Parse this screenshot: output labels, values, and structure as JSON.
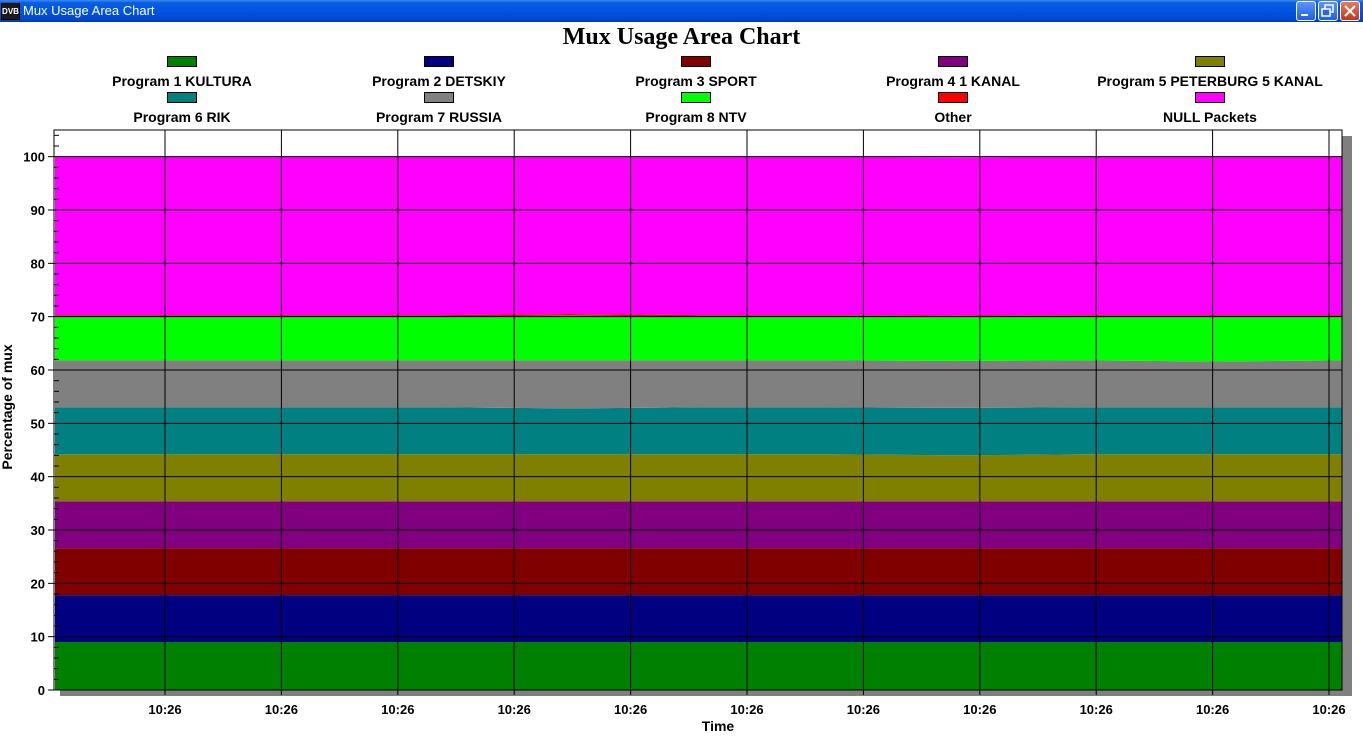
{
  "window": {
    "title": "Mux Usage Area Chart",
    "icon_text": "DVB"
  },
  "chart_data": {
    "type": "area",
    "stacked": true,
    "title": "Mux Usage Area Chart",
    "xlabel": "Time",
    "ylabel": "Percentage of mux",
    "ylim": [
      0,
      105
    ],
    "yticks": [
      0,
      10,
      20,
      30,
      40,
      50,
      60,
      70,
      80,
      90,
      100
    ],
    "x_tick_labels": [
      "10:26",
      "10:26",
      "10:26",
      "10:26",
      "10:26",
      "10:26",
      "10:26",
      "10:26",
      "10:26",
      "10:26",
      "10:26"
    ],
    "grid": true,
    "legend_position": "top",
    "series": [
      {
        "name": "Program 1 KULTURA",
        "color": "#008000",
        "values": [
          9,
          9,
          9,
          9,
          9,
          9,
          9,
          9,
          9,
          9,
          9
        ]
      },
      {
        "name": "Program 2 DETSKIY",
        "color": "#000080",
        "values": [
          8.8,
          8.8,
          8.8,
          8.8,
          8.8,
          8.8,
          8.8,
          8.8,
          8.8,
          8.8,
          8.8
        ]
      },
      {
        "name": "Program 3 SPORT",
        "color": "#800000",
        "values": [
          8.8,
          8.8,
          8.8,
          8.8,
          8.8,
          8.8,
          8.8,
          8.8,
          8.8,
          8.8,
          8.8
        ]
      },
      {
        "name": "Program 4 1 KANAL",
        "color": "#800080",
        "values": [
          8.8,
          8.8,
          8.8,
          8.8,
          8.8,
          8.8,
          8.8,
          8.8,
          8.8,
          8.8,
          8.8
        ]
      },
      {
        "name": "Program 5 PETERBURG 5 KANAL",
        "color": "#808000",
        "values": [
          8.8,
          8.8,
          8.8,
          8.8,
          8.8,
          8.8,
          8.8,
          8.6,
          8.8,
          8.8,
          8.8
        ]
      },
      {
        "name": "Program 6 RIK",
        "color": "#008080",
        "values": [
          8.8,
          8.8,
          8.8,
          8.8,
          8.6,
          8.8,
          8.8,
          8.9,
          8.8,
          8.8,
          8.8
        ]
      },
      {
        "name": "Program 7 RUSSIA",
        "color": "#808080",
        "values": [
          8.8,
          8.8,
          8.8,
          8.8,
          9.0,
          8.8,
          8.8,
          8.8,
          8.8,
          8.6,
          8.8
        ]
      },
      {
        "name": "Program 8 NTV",
        "color": "#00ff00",
        "values": [
          8.2,
          8.2,
          8.2,
          8.2,
          8.4,
          8.2,
          8.2,
          8.2,
          8.2,
          8.4,
          8.2
        ]
      },
      {
        "name": "Other",
        "color": "#ff0000",
        "values": [
          0.3,
          0.3,
          0.3,
          0.3,
          0.3,
          0.3,
          0.3,
          0.3,
          0.3,
          0.3,
          0.3
        ]
      },
      {
        "name": "NULL Packets",
        "color": "#ff00ff",
        "values": [
          29.7,
          29.7,
          29.7,
          29.7,
          29.5,
          29.7,
          29.7,
          29.7,
          29.7,
          29.7,
          29.7
        ]
      }
    ]
  }
}
